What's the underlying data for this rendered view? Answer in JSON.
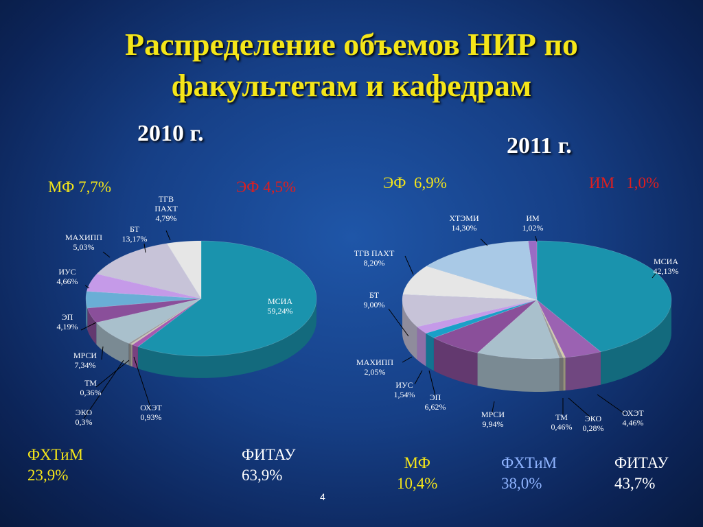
{
  "title_line1": "Распределение объемов НИР по",
  "title_line2": "факультетам и кафедрам",
  "page_number": "4",
  "chart_data": [
    {
      "type": "pie",
      "title": "2010 г.",
      "series": [
        {
          "values": [
            59.24,
            0.93,
            0.3,
            0.36,
            7.34,
            4.19,
            4.66,
            5.03,
            13.17,
            4.79
          ],
          "categories": [
            "МСИА",
            "ОХЭТ",
            "ЭКО",
            "ТМ",
            "МРСИ",
            "ЭП",
            "ИУС",
            "МАХИПП",
            "БТ",
            "ТГВ ПАХТ"
          ]
        }
      ],
      "slice_labels": [
        "МСИА\n59,24%",
        "ОХЭТ\n0,93%",
        "ЭКО\n0,3%",
        "ТМ\n0,36%",
        "МРСИ\n7,34%",
        "ЭП\n4,19%",
        "ИУС\n4,66%",
        "МАХИПП\n5,03%",
        "БТ\n13,17%",
        "ТГВ\nПАХТ\n4,79%"
      ],
      "colors": [
        "#1a93ad",
        "#a65ab0",
        "#cfc6b0",
        "#9a9a9a",
        "#a9c0cc",
        "#8a4f9a",
        "#6aaed6",
        "#c59ae8",
        "#c7c3d8",
        "#e6e6e6"
      ],
      "group_labels": [
        {
          "name": "МФ 7,7%",
          "color": "#f5e619"
        },
        {
          "name": "ЭФ 4,5%",
          "color": "#e01e1e"
        },
        {
          "name": "ФХТиМ",
          "value": "23,9%",
          "color": "#f5e619"
        },
        {
          "name": "ФИТАУ",
          "value": "63,9%",
          "color": "#ffffff"
        }
      ]
    },
    {
      "type": "pie",
      "title": "2011 г.",
      "series": [
        {
          "values": [
            42.13,
            4.46,
            0.28,
            0.46,
            9.94,
            6.62,
            1.54,
            2.05,
            9.0,
            8.2,
            14.3,
            1.02
          ],
          "categories": [
            "МСИА",
            "ОХЭТ",
            "ЭКО",
            "ТМ",
            "МРСИ",
            "ЭП",
            "ИУС",
            "МАХИПП",
            "БТ",
            "ТГВ ПАХТ",
            "ХТЭМИ",
            "ИМ"
          ]
        }
      ],
      "slice_labels": [
        "МСИА\n42,13%",
        "ОХЭТ\n4,46%",
        "ЭКО\n0,28%",
        "ТМ\n0,46%",
        "МРСИ\n9,94%",
        "ЭП\n6,62%",
        "ИУС\n1,54%",
        "МАХИПП\n2,05%",
        "БТ\n9,00%",
        "ТГВ ПАХТ\n8,20%",
        "ХТЭМИ\n14,30%",
        "ИМ\n1,02%"
      ],
      "colors": [
        "#1a93ad",
        "#9b62b2",
        "#d3cba8",
        "#9a9a9a",
        "#a9c0cc",
        "#8a4f9a",
        "#1aa0c8",
        "#c59ae8",
        "#c7c3d8",
        "#e6e6e6",
        "#a9c9e6",
        "#9a6cc4"
      ],
      "group_labels": [
        {
          "name": "ЭФ  6,9%",
          "color": "#f5e619"
        },
        {
          "name": "ИМ   1,0%",
          "color": "#e01e1e"
        },
        {
          "name": "МФ",
          "value": "10,4%",
          "color": "#f5e619"
        },
        {
          "name": "ФХТиМ",
          "value": "38,0%",
          "color": "#8fb4ff"
        },
        {
          "name": "ФИТАУ",
          "value": "43,7%",
          "color": "#ffffff"
        }
      ]
    }
  ]
}
